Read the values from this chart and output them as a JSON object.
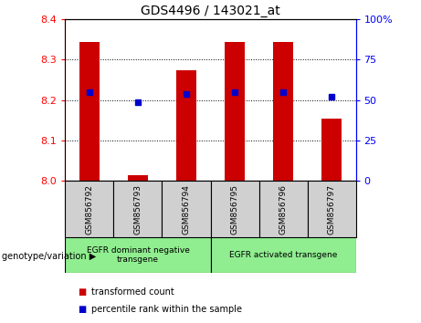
{
  "title": "GDS4496 / 143021_at",
  "samples": [
    "GSM856792",
    "GSM856793",
    "GSM856794",
    "GSM856795",
    "GSM856796",
    "GSM856797"
  ],
  "red_bar_heights": [
    8.345,
    8.015,
    8.275,
    8.345,
    8.345,
    8.155
  ],
  "blue_percentile": [
    55,
    49,
    54,
    55,
    55,
    52
  ],
  "ylim": [
    8.0,
    8.4
  ],
  "yticks_left": [
    8.0,
    8.1,
    8.2,
    8.3,
    8.4
  ],
  "yticks_right": [
    0,
    25,
    50,
    75,
    100
  ],
  "grid_values": [
    8.1,
    8.2,
    8.3
  ],
  "group1_samples": [
    0,
    1,
    2
  ],
  "group2_samples": [
    3,
    4,
    5
  ],
  "group1_label": "EGFR dominant negative\ntransgene",
  "group2_label": "EGFR activated transgene",
  "bar_color": "#cc0000",
  "square_color": "#0000cc",
  "group_bg": "#90ee90",
  "sample_box_bg": "#d0d0d0",
  "legend_red_label": "transformed count",
  "legend_blue_label": "percentile rank within the sample",
  "genotype_label": "genotype/variation",
  "figsize": [
    4.61,
    3.54
  ],
  "dpi": 100,
  "bar_width": 0.4
}
